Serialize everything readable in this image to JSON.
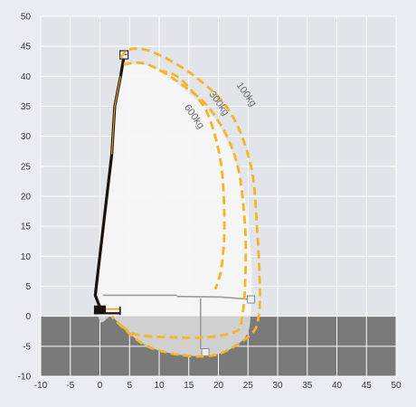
{
  "chart_data": {
    "type": "area",
    "title": "",
    "xlabel": "",
    "ylabel": "",
    "xlim": [
      -10,
      50
    ],
    "ylim": [
      -10,
      50
    ],
    "x_ticks": [
      -10,
      -5,
      0,
      5,
      10,
      15,
      20,
      25,
      30,
      35,
      40,
      45,
      50
    ],
    "y_ticks": [
      -10,
      -5,
      0,
      5,
      10,
      15,
      20,
      25,
      30,
      35,
      40,
      45,
      50
    ],
    "grid": true,
    "ground_level": 0,
    "working_envelope": [
      [
        -0.3,
        1
      ],
      [
        1.5,
        25
      ],
      [
        3.5,
        41
      ],
      [
        5,
        42
      ],
      [
        9,
        41.5
      ],
      [
        14,
        38
      ],
      [
        20,
        32
      ],
      [
        24,
        22
      ],
      [
        25.5,
        10
      ],
      [
        25.5,
        1
      ],
      [
        24.5,
        -3.5
      ],
      [
        20,
        -6.3
      ],
      [
        14,
        -6.5
      ],
      [
        8,
        -5
      ],
      [
        4,
        -2
      ],
      [
        2,
        0
      ]
    ],
    "series": [
      {
        "name": "100kg",
        "color": "#f6b42b",
        "points": [
          [
            3.5,
            43
          ],
          [
            5,
            44.5
          ],
          [
            9,
            44
          ],
          [
            16,
            40
          ],
          [
            22,
            34
          ],
          [
            25.5,
            25
          ],
          [
            26.5,
            15
          ],
          [
            27,
            5
          ],
          [
            26.8,
            0
          ],
          [
            25.5,
            -3
          ],
          [
            20,
            -6.3
          ],
          [
            14,
            -6.5
          ],
          [
            8,
            -5
          ],
          [
            4,
            -2
          ],
          [
            2,
            0
          ]
        ]
      },
      {
        "name": "300kg",
        "color": "#f6b42b",
        "points": [
          [
            4,
            42
          ],
          [
            8,
            42
          ],
          [
            14,
            38.5
          ],
          [
            19,
            34
          ],
          [
            23,
            26
          ],
          [
            24.5,
            15
          ],
          [
            24.5,
            5
          ],
          [
            24,
            0
          ],
          [
            23,
            -2.5
          ],
          [
            18,
            -3.5
          ],
          [
            12,
            -3.5
          ],
          [
            6,
            -3
          ],
          [
            3,
            -1
          ]
        ]
      },
      {
        "name": "600kg",
        "color": "#f6b42b",
        "points": [
          [
            10,
            41
          ],
          [
            13,
            40
          ],
          [
            16,
            37
          ],
          [
            18.5,
            33
          ],
          [
            20.5,
            25
          ],
          [
            21,
            15
          ],
          [
            20.5,
            8
          ],
          [
            19.5,
            4.5
          ]
        ]
      }
    ],
    "series_labels": [
      {
        "name": "100kg",
        "x": 24.3,
        "y": 36.7
      },
      {
        "name": "300kg",
        "x": 19.7,
        "y": 35.2
      },
      {
        "name": "600kg",
        "x": 15.5,
        "y": 33.0
      }
    ],
    "boom": {
      "color": "#1b120c",
      "accent": "#e5a020",
      "points": [
        [
          0,
          1.5
        ],
        [
          -0.8,
          3.5
        ],
        [
          2,
          27
        ],
        [
          2.5,
          35
        ],
        [
          3.5,
          40
        ],
        [
          4,
          43
        ]
      ]
    },
    "outrigger": {
      "color": "#9a9a9a",
      "lines": [
        [
          [
            0.5,
            3.5
          ],
          [
            13,
            3.5
          ]
        ],
        [
          [
            13,
            3.3
          ],
          [
            20.5,
            3.2
          ]
        ],
        [
          [
            20.5,
            3.2
          ],
          [
            25.5,
            2.8
          ]
        ],
        [
          [
            17,
            3
          ],
          [
            17,
            -5.5
          ]
        ]
      ]
    },
    "colors": {
      "background": "#e9edf3",
      "plot_area": "#e1e4e8",
      "ground": "#7a7a7a",
      "grid": "#ffffff",
      "envelope_fill": "#f6f6f6",
      "envelope_below_ground": "#d0d0d0",
      "load_curve": "#f6b42b"
    }
  }
}
